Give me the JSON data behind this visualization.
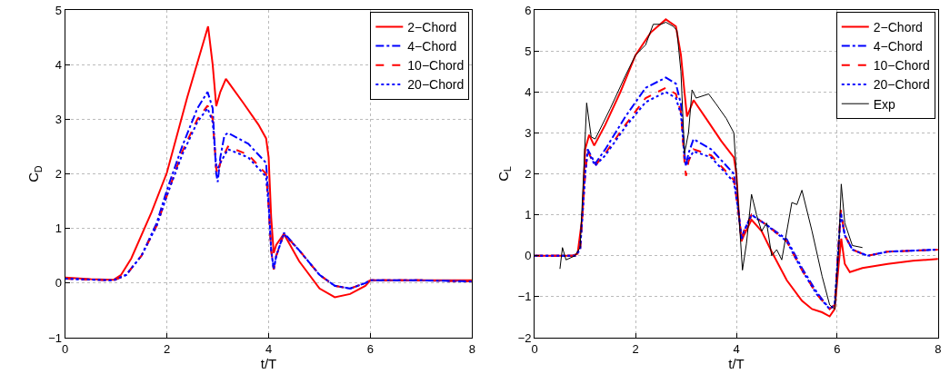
{
  "chart_data": [
    {
      "type": "line",
      "xlabel": "t/T",
      "ylabel": "C$_{D}$",
      "xlim": [
        0,
        8
      ],
      "xticks": [
        0,
        2,
        4,
        6,
        8
      ],
      "ylim": [
        -1,
        5
      ],
      "yticks": [
        -1,
        0,
        1,
        2,
        3,
        4,
        5
      ],
      "grid": true,
      "legend": "top right",
      "series": [
        {
          "name": "2−Chord",
          "color": "#ff0000",
          "line_style": "solid",
          "x": [
            0,
            0.5,
            0.95,
            1.1,
            1.3,
            1.7,
            2.0,
            2.4,
            2.81,
            2.9,
            2.97,
            3.05,
            3.16,
            3.5,
            3.8,
            3.95,
            4.0,
            4.05,
            4.1,
            4.15,
            4.3,
            4.6,
            5.0,
            5.3,
            5.6,
            5.9,
            6.0,
            7.0,
            8.0
          ],
          "values": [
            0.1,
            0.07,
            0.06,
            0.15,
            0.45,
            1.3,
            2.02,
            3.4,
            4.7,
            4.0,
            3.24,
            3.5,
            3.74,
            3.3,
            2.9,
            2.65,
            2.3,
            1.2,
            0.55,
            0.7,
            0.9,
            0.4,
            -0.1,
            -0.26,
            -0.2,
            -0.05,
            0.05,
            0.05,
            0.05
          ]
        },
        {
          "name": "4−Chord",
          "color": "#0000ff",
          "line_style": "dashdot",
          "x": [
            0,
            0.95,
            1.2,
            1.5,
            1.8,
            2.0,
            2.3,
            2.6,
            2.8,
            2.9,
            2.97,
            3.0,
            3.05,
            3.13,
            3.2,
            3.6,
            3.95,
            4.0,
            4.05,
            4.1,
            4.15,
            4.3,
            4.6,
            5.0,
            5.3,
            5.6,
            5.9,
            6.0,
            7.0,
            8.0
          ],
          "values": [
            0.08,
            0.05,
            0.15,
            0.5,
            1.1,
            1.7,
            2.5,
            3.2,
            3.5,
            3.2,
            2.0,
            1.85,
            2.3,
            2.7,
            2.75,
            2.55,
            2.2,
            1.5,
            0.6,
            0.25,
            0.5,
            0.92,
            0.6,
            0.15,
            -0.05,
            -0.1,
            0.0,
            0.05,
            0.05,
            0.03
          ]
        },
        {
          "name": "10−Chord",
          "color": "#ff0000",
          "line_style": "dashed",
          "x": [
            0,
            0.95,
            1.2,
            1.5,
            1.8,
            2.0,
            2.3,
            2.6,
            2.8,
            2.9,
            2.97,
            3.0,
            3.05,
            3.2,
            3.6,
            3.95,
            4.0,
            4.05,
            4.1,
            4.15,
            4.3,
            4.6,
            5.0,
            5.3,
            5.6,
            5.9,
            6.0,
            7.0,
            8.0
          ],
          "values": [
            0.08,
            0.05,
            0.15,
            0.5,
            1.05,
            1.6,
            2.4,
            3.0,
            3.25,
            3.0,
            2.1,
            2.0,
            2.2,
            2.5,
            2.35,
            2.0,
            1.4,
            0.6,
            0.25,
            0.5,
            0.9,
            0.6,
            0.15,
            -0.05,
            -0.1,
            0.0,
            0.05,
            0.05,
            0.03
          ]
        },
        {
          "name": "20−Chord",
          "color": "#0000ff",
          "line_style": "dotted",
          "x": [
            0,
            0.95,
            1.2,
            1.5,
            1.8,
            2.0,
            2.3,
            2.6,
            2.8,
            2.9,
            2.97,
            3.0,
            3.05,
            3.2,
            3.6,
            3.95,
            4.0,
            4.05,
            4.1,
            4.15,
            4.3,
            4.6,
            5.0,
            5.3,
            5.6,
            5.9,
            6.0,
            7.0,
            8.0
          ],
          "values": [
            0.08,
            0.05,
            0.15,
            0.5,
            1.05,
            1.6,
            2.35,
            2.95,
            3.2,
            2.95,
            2.15,
            2.1,
            2.2,
            2.45,
            2.3,
            1.95,
            1.4,
            0.6,
            0.25,
            0.5,
            0.9,
            0.6,
            0.15,
            -0.05,
            -0.1,
            0.0,
            0.05,
            0.05,
            0.03
          ]
        }
      ]
    },
    {
      "type": "line",
      "xlabel": "t/T",
      "ylabel": "C$_{L}$",
      "xlim": [
        0,
        8
      ],
      "xticks": [
        0,
        2,
        4,
        6,
        8
      ],
      "ylim": [
        -2,
        6
      ],
      "yticks": [
        -2,
        -1,
        0,
        1,
        2,
        3,
        4,
        5,
        6
      ],
      "grid": true,
      "legend": "top right",
      "series": [
        {
          "name": "2−Chord",
          "color": "#ff0000",
          "line_style": "solid",
          "x": [
            0,
            0.75,
            0.85,
            0.95,
            1.0,
            1.08,
            1.18,
            1.4,
            1.7,
            2.0,
            2.3,
            2.6,
            2.8,
            2.9,
            2.97,
            3.02,
            3.15,
            3.4,
            3.7,
            3.95,
            4.0,
            4.05,
            4.1,
            4.15,
            4.3,
            4.5,
            4.7,
            5.0,
            5.3,
            5.5,
            5.7,
            5.85,
            5.95,
            6.03,
            6.08,
            6.15,
            6.25,
            6.5,
            7.0,
            7.5,
            8.0
          ],
          "values": [
            0,
            0,
            0.05,
            1.0,
            2.6,
            2.95,
            2.69,
            3.2,
            4.0,
            4.9,
            5.45,
            5.77,
            5.6,
            4.9,
            4.0,
            3.4,
            3.8,
            3.35,
            2.8,
            2.4,
            2.0,
            1.0,
            0.35,
            0.5,
            0.88,
            0.6,
            0.1,
            -0.6,
            -1.1,
            -1.3,
            -1.38,
            -1.48,
            -1.3,
            -0.2,
            0.42,
            -0.2,
            -0.4,
            -0.3,
            -0.2,
            -0.12,
            -0.08
          ]
        },
        {
          "name": "4−Chord",
          "color": "#0000ff",
          "line_style": "dashdot",
          "x": [
            0,
            0.8,
            0.9,
            1.0,
            1.05,
            1.2,
            1.4,
            1.8,
            2.2,
            2.6,
            2.8,
            2.9,
            2.97,
            3.0,
            3.05,
            3.15,
            3.5,
            3.95,
            4.05,
            4.1,
            4.15,
            4.3,
            4.6,
            5.0,
            5.3,
            5.6,
            5.85,
            5.95,
            6.03,
            6.07,
            6.15,
            6.3,
            6.6,
            7.0,
            8.0
          ],
          "values": [
            0,
            0,
            0.15,
            2.0,
            2.6,
            2.25,
            2.6,
            3.4,
            4.1,
            4.35,
            4.2,
            3.7,
            2.5,
            2.2,
            2.5,
            2.85,
            2.6,
            2.0,
            1.0,
            0.4,
            0.6,
            1.0,
            0.75,
            0.4,
            -0.3,
            -0.9,
            -1.3,
            -1.2,
            0.3,
            1.05,
            0.5,
            0.15,
            0.0,
            0.1,
            0.15
          ]
        },
        {
          "name": "10−Chord",
          "color": "#ff0000",
          "line_style": "dashed",
          "x": [
            0,
            0.8,
            0.9,
            1.0,
            1.05,
            1.2,
            1.4,
            1.8,
            2.2,
            2.6,
            2.8,
            2.9,
            2.97,
            3.0,
            3.05,
            3.15,
            3.5,
            3.95,
            4.05,
            4.1,
            4.15,
            4.3,
            4.6,
            5.0,
            5.3,
            5.6,
            5.85,
            5.95,
            6.03,
            6.07,
            6.15,
            6.3,
            6.6,
            7.0,
            8.0
          ],
          "values": [
            0,
            0,
            0.15,
            2.0,
            2.55,
            2.2,
            2.5,
            3.2,
            3.85,
            4.1,
            3.95,
            3.5,
            2.3,
            1.95,
            2.3,
            2.6,
            2.45,
            1.85,
            1.0,
            0.4,
            0.6,
            1.0,
            0.75,
            0.35,
            -0.35,
            -0.95,
            -1.3,
            -1.2,
            0.3,
            1.12,
            0.5,
            0.15,
            0.0,
            0.1,
            0.15
          ]
        },
        {
          "name": "20−Chord",
          "color": "#0000ff",
          "line_style": "dotted",
          "x": [
            0,
            0.8,
            0.9,
            1.0,
            1.05,
            1.2,
            1.4,
            1.8,
            2.2,
            2.6,
            2.8,
            2.9,
            2.97,
            3.0,
            3.05,
            3.15,
            3.5,
            3.95,
            4.05,
            4.1,
            4.15,
            4.3,
            4.6,
            5.0,
            5.3,
            5.6,
            5.85,
            5.95,
            6.03,
            6.07,
            6.15,
            6.3,
            6.6,
            7.0,
            8.0
          ],
          "values": [
            0,
            0,
            0.15,
            2.0,
            2.55,
            2.2,
            2.45,
            3.15,
            3.75,
            4.0,
            3.85,
            3.45,
            2.4,
            2.2,
            2.35,
            2.55,
            2.4,
            1.8,
            1.0,
            0.4,
            0.6,
            1.0,
            0.75,
            0.35,
            -0.35,
            -0.95,
            -1.3,
            -1.2,
            0.3,
            1.05,
            0.5,
            0.15,
            0.0,
            0.1,
            0.15
          ]
        },
        {
          "name": "Exp",
          "color": "#000000",
          "line_style": "solid",
          "x": [
            0.5,
            0.55,
            0.62,
            0.8,
            0.9,
            0.97,
            1.03,
            1.12,
            1.2,
            1.5,
            1.8,
            2.0,
            2.2,
            2.35,
            2.5,
            2.6,
            2.75,
            2.82,
            2.9,
            2.97,
            3.05,
            3.12,
            3.2,
            3.45,
            3.6,
            3.8,
            3.95,
            4.05,
            4.12,
            4.2,
            4.3,
            4.4,
            4.5,
            4.6,
            4.7,
            4.8,
            4.9,
            5.1,
            5.2,
            5.3,
            5.5,
            5.7,
            5.85,
            5.95,
            6.03,
            6.08,
            6.15,
            6.3,
            6.5
          ],
          "values": [
            -0.32,
            0.2,
            -0.1,
            0.0,
            0.2,
            2.0,
            3.73,
            2.9,
            2.85,
            3.6,
            4.4,
            4.9,
            5.15,
            5.65,
            5.65,
            5.7,
            5.6,
            5.5,
            4.5,
            2.5,
            3.0,
            4.05,
            3.85,
            3.95,
            3.7,
            3.35,
            3.0,
            1.0,
            -0.35,
            0.3,
            1.5,
            1.0,
            0.6,
            0.8,
            0.0,
            0.15,
            -0.1,
            1.3,
            1.25,
            1.6,
            0.6,
            -0.5,
            -1.2,
            -1.3,
            0.2,
            1.75,
            0.8,
            0.25,
            0.2
          ]
        }
      ]
    }
  ]
}
